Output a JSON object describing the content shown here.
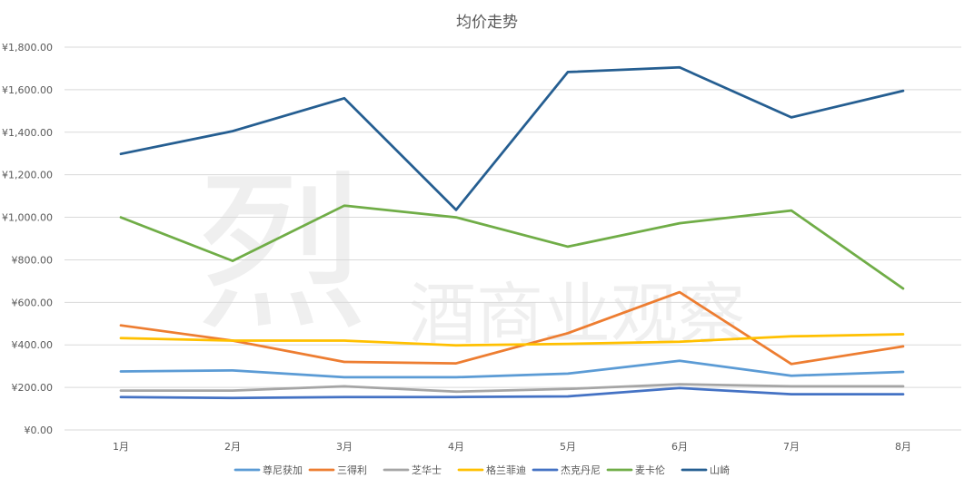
{
  "chart_data": {
    "type": "line",
    "title": "均价走势",
    "xlabel": "",
    "ylabel": "",
    "categories": [
      "1月",
      "2月",
      "3月",
      "4月",
      "5月",
      "6月",
      "7月",
      "8月"
    ],
    "ylim": [
      0,
      1800
    ],
    "yticks": [
      0,
      200,
      400,
      600,
      800,
      1000,
      1200,
      1400,
      1600,
      1800
    ],
    "ytick_labels": [
      "¥0.00",
      "¥200.00",
      "¥400.00",
      "¥600.00",
      "¥800.00",
      "¥1,000.00",
      "¥1,200.00",
      "¥1,400.00",
      "¥1,600.00",
      "¥1,800.00"
    ],
    "grid": true,
    "legend_position": "bottom",
    "series": [
      {
        "name": "尊尼获加",
        "color": "#5b9bd5",
        "values": [
          275,
          280,
          248,
          248,
          265,
          325,
          255,
          273
        ]
      },
      {
        "name": "三得利",
        "color": "#ed7d31",
        "values": [
          492,
          420,
          320,
          313,
          455,
          648,
          310,
          393
        ]
      },
      {
        "name": "芝华士",
        "color": "#a5a5a5",
        "values": [
          185,
          185,
          205,
          180,
          193,
          215,
          205,
          205
        ]
      },
      {
        "name": "格兰菲迪",
        "color": "#ffc000",
        "values": [
          432,
          420,
          420,
          398,
          405,
          415,
          440,
          450
        ]
      },
      {
        "name": "杰克丹尼",
        "color": "#4472c4",
        "values": [
          155,
          150,
          155,
          155,
          158,
          197,
          168,
          168
        ]
      },
      {
        "name": "麦卡伦",
        "color": "#70ad47",
        "values": [
          1000,
          795,
          1055,
          1000,
          862,
          972,
          1032,
          665
        ]
      },
      {
        "name": "山崎",
        "color": "#255e91",
        "values": [
          1298,
          1405,
          1560,
          1035,
          1683,
          1705,
          1470,
          1595
        ]
      }
    ]
  },
  "watermark": {
    "line1": "烈",
    "line2": "酒商业观察"
  }
}
